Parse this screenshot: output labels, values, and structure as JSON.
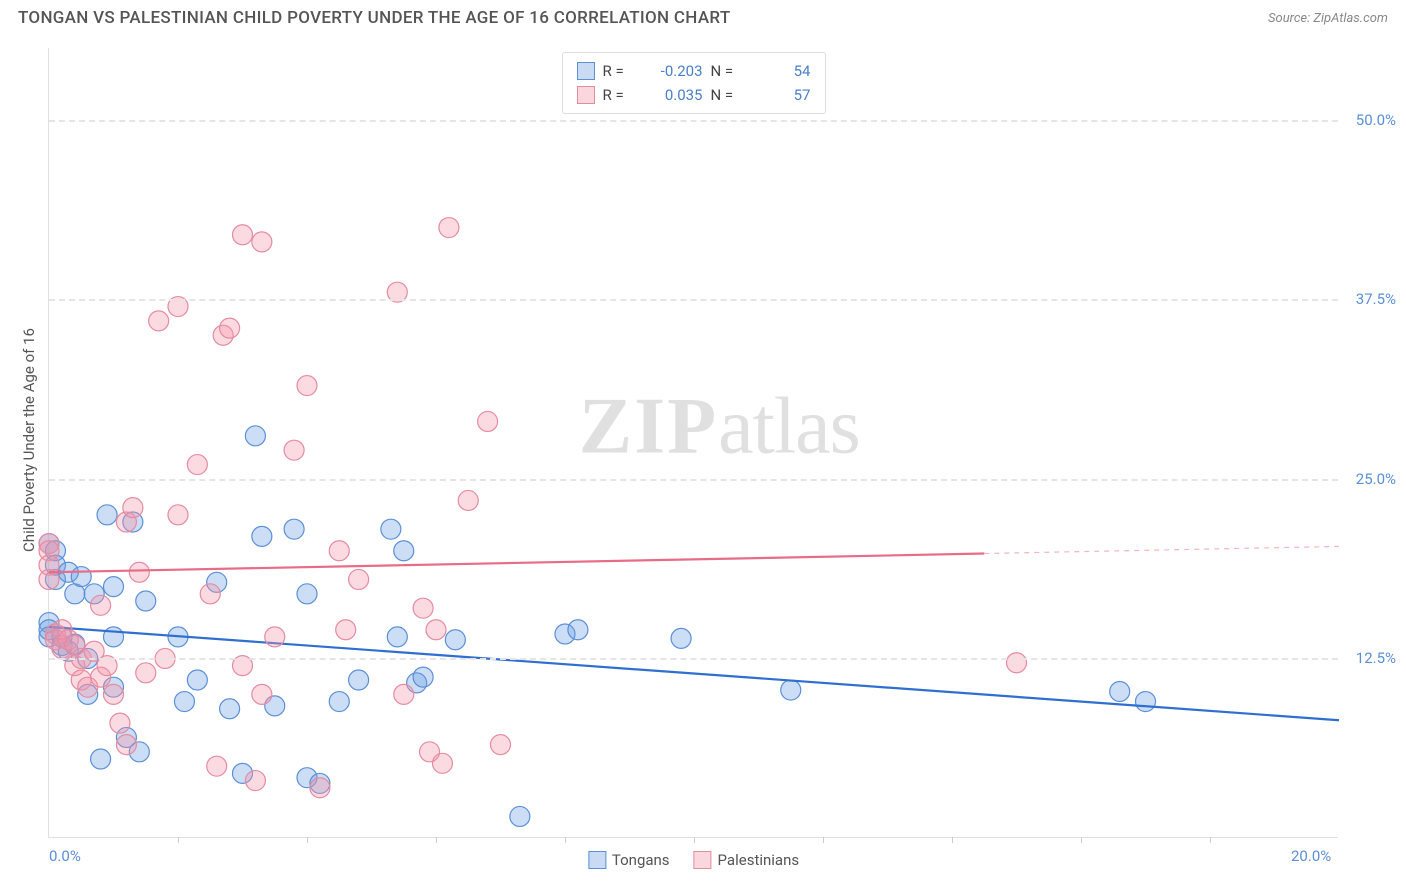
{
  "header": {
    "title": "TONGAN VS PALESTINIAN CHILD POVERTY UNDER THE AGE OF 16 CORRELATION CHART",
    "source": "Source: ZipAtlas.com"
  },
  "chart": {
    "type": "scatter",
    "axis_title_y": "Child Poverty Under the Age of 16",
    "x_domain": [
      0,
      20
    ],
    "y_domain": [
      0,
      55
    ],
    "x_ticks_labeled": [
      {
        "v": 0,
        "label": "0.0%"
      },
      {
        "v": 20,
        "label": "20.0%"
      }
    ],
    "x_ticks_minor": [
      2,
      4,
      6,
      8,
      10,
      12,
      14,
      16,
      18
    ],
    "y_ticks": [
      {
        "v": 12.5,
        "label": "12.5%"
      },
      {
        "v": 25.0,
        "label": "25.0%"
      },
      {
        "v": 37.5,
        "label": "37.5%"
      },
      {
        "v": 50.0,
        "label": "50.0%"
      }
    ],
    "grid_color": "#e5e5e5",
    "background_color": "#ffffff",
    "marker_radius": 10,
    "marker_stroke_width": 1.2,
    "series": [
      {
        "name": "Tongans",
        "fill": "rgba(110,160,225,0.35)",
        "stroke": "#5b8fd6",
        "correlation_R": "-0.203",
        "N": "54",
        "trend": {
          "y_at_x0": 14.7,
          "y_at_x20": 8.2,
          "color": "#2f6fd0",
          "width": 2.2
        },
        "points": [
          [
            0.0,
            15.0
          ],
          [
            0.0,
            14.0
          ],
          [
            0.0,
            14.5
          ],
          [
            0.0,
            20.5
          ],
          [
            0.1,
            18.0
          ],
          [
            0.1,
            20.0
          ],
          [
            0.1,
            19.0
          ],
          [
            0.2,
            13.4
          ],
          [
            0.2,
            14.0
          ],
          [
            0.3,
            18.5
          ],
          [
            0.3,
            13.0
          ],
          [
            0.4,
            17.0
          ],
          [
            0.4,
            13.5
          ],
          [
            0.5,
            18.2
          ],
          [
            0.6,
            10.0
          ],
          [
            0.6,
            12.5
          ],
          [
            0.7,
            17.0
          ],
          [
            0.8,
            5.5
          ],
          [
            0.9,
            22.5
          ],
          [
            1.0,
            17.5
          ],
          [
            1.0,
            14.0
          ],
          [
            1.0,
            10.5
          ],
          [
            1.2,
            7.0
          ],
          [
            1.3,
            22.0
          ],
          [
            1.4,
            6.0
          ],
          [
            1.5,
            16.5
          ],
          [
            2.0,
            14.0
          ],
          [
            2.1,
            9.5
          ],
          [
            2.3,
            11.0
          ],
          [
            2.6,
            17.8
          ],
          [
            2.8,
            9.0
          ],
          [
            3.0,
            4.5
          ],
          [
            3.2,
            28.0
          ],
          [
            3.3,
            21.0
          ],
          [
            3.5,
            9.2
          ],
          [
            3.8,
            21.5
          ],
          [
            4.0,
            17.0
          ],
          [
            4.0,
            4.2
          ],
          [
            4.2,
            3.8
          ],
          [
            4.5,
            9.5
          ],
          [
            4.8,
            11.0
          ],
          [
            5.3,
            21.5
          ],
          [
            5.4,
            14.0
          ],
          [
            5.5,
            20.0
          ],
          [
            5.7,
            10.8
          ],
          [
            5.8,
            11.2
          ],
          [
            6.3,
            13.8
          ],
          [
            7.3,
            1.5
          ],
          [
            8.0,
            14.2
          ],
          [
            8.2,
            14.5
          ],
          [
            9.8,
            13.9
          ],
          [
            11.5,
            10.3
          ],
          [
            16.6,
            10.2
          ],
          [
            17.0,
            9.5
          ]
        ]
      },
      {
        "name": "Palestinians",
        "fill": "rgba(245,150,170,0.35)",
        "stroke": "#e58ba0",
        "correlation_R": "0.035",
        "N": "57",
        "trend": {
          "y_at_x0": 18.5,
          "y_at_x20": 20.3,
          "color": "#e86b88",
          "width": 2.2,
          "dash_after_x": 14.5
        },
        "points": [
          [
            0.0,
            20.5
          ],
          [
            0.0,
            20.0
          ],
          [
            0.0,
            19.0
          ],
          [
            0.0,
            18.0
          ],
          [
            0.1,
            14.2
          ],
          [
            0.1,
            13.8
          ],
          [
            0.2,
            14.5
          ],
          [
            0.2,
            13.2
          ],
          [
            0.3,
            13.8
          ],
          [
            0.4,
            13.4
          ],
          [
            0.4,
            12.0
          ],
          [
            0.5,
            12.5
          ],
          [
            0.5,
            11.0
          ],
          [
            0.6,
            10.5
          ],
          [
            0.7,
            13.0
          ],
          [
            0.8,
            11.2
          ],
          [
            0.8,
            16.2
          ],
          [
            0.9,
            12.0
          ],
          [
            1.0,
            10.0
          ],
          [
            1.1,
            8.0
          ],
          [
            1.2,
            6.5
          ],
          [
            1.2,
            22.0
          ],
          [
            1.3,
            23.0
          ],
          [
            1.4,
            18.5
          ],
          [
            1.5,
            11.5
          ],
          [
            1.7,
            36.0
          ],
          [
            1.8,
            12.5
          ],
          [
            2.0,
            22.5
          ],
          [
            2.0,
            37.0
          ],
          [
            2.3,
            26.0
          ],
          [
            2.5,
            17.0
          ],
          [
            2.6,
            5.0
          ],
          [
            2.7,
            35.0
          ],
          [
            2.8,
            35.5
          ],
          [
            3.0,
            42.0
          ],
          [
            3.0,
            12.0
          ],
          [
            3.2,
            4.0
          ],
          [
            3.3,
            41.5
          ],
          [
            3.3,
            10.0
          ],
          [
            3.5,
            14.0
          ],
          [
            3.8,
            27.0
          ],
          [
            4.0,
            31.5
          ],
          [
            4.2,
            3.5
          ],
          [
            4.5,
            20.0
          ],
          [
            4.6,
            14.5
          ],
          [
            4.8,
            18.0
          ],
          [
            5.4,
            38.0
          ],
          [
            5.5,
            10.0
          ],
          [
            5.8,
            16.0
          ],
          [
            5.9,
            6.0
          ],
          [
            6.0,
            14.5
          ],
          [
            6.1,
            5.2
          ],
          [
            6.2,
            42.5
          ],
          [
            6.5,
            23.5
          ],
          [
            6.8,
            29.0
          ],
          [
            7.0,
            6.5
          ],
          [
            15.0,
            12.2
          ]
        ]
      }
    ],
    "watermark": {
      "text_bold": "ZIP",
      "text_light": "atlas"
    }
  },
  "legend_top": {
    "rows": [
      {
        "swatch": "blue",
        "R_label": "R =",
        "R": "-0.203",
        "N_label": "N =",
        "N": "54"
      },
      {
        "swatch": "pink",
        "R_label": "R =",
        "R": " 0.035",
        "N_label": "N =",
        "N": "57"
      }
    ]
  },
  "legend_bottom": {
    "items": [
      {
        "swatch": "blue",
        "label": "Tongans"
      },
      {
        "swatch": "pink",
        "label": "Palestinians"
      }
    ]
  }
}
